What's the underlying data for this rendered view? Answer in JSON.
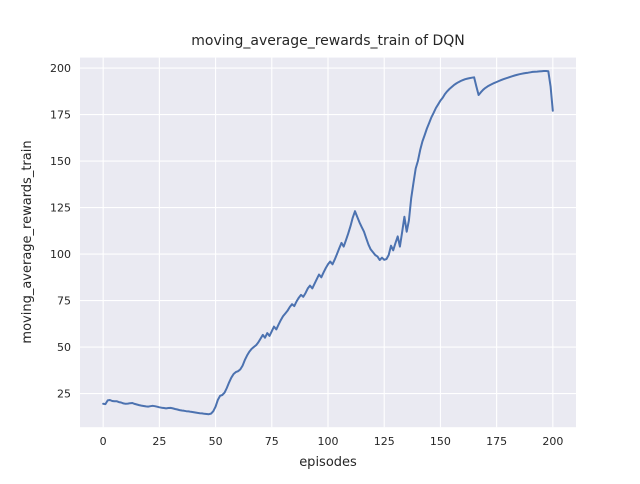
{
  "figure": {
    "background": "#ffffff"
  },
  "chart_data": {
    "type": "line",
    "title": "moving_average_rewards_train of DQN",
    "xlabel": "episodes",
    "ylabel": "moving_average_rewards_train",
    "x_ticks": [
      0,
      25,
      50,
      75,
      100,
      125,
      150,
      175,
      200
    ],
    "y_ticks": [
      25,
      50,
      75,
      100,
      125,
      150,
      175,
      200
    ],
    "xlim": [
      -10.3,
      210.3
    ],
    "ylim": [
      6.9,
      205.6
    ],
    "grid": true,
    "legend_position": "none",
    "styles": {
      "line_color": "#4c72b0",
      "plot_bg": "#eaeaf2",
      "grid_color": "#ffffff",
      "text_color": "#262626",
      "line_width": 2
    },
    "series": [
      {
        "name": "moving_average_rewards_train",
        "points": [
          [
            0,
            19.5
          ],
          [
            1,
            19.3
          ],
          [
            2,
            21.3
          ],
          [
            3,
            21.5
          ],
          [
            4,
            21.0
          ],
          [
            5,
            20.8
          ],
          [
            6,
            20.9
          ],
          [
            7,
            20.4
          ],
          [
            8,
            20.2
          ],
          [
            9,
            19.7
          ],
          [
            10,
            19.5
          ],
          [
            11,
            19.6
          ],
          [
            12,
            19.8
          ],
          [
            13,
            19.9
          ],
          [
            14,
            19.4
          ],
          [
            15,
            19.1
          ],
          [
            16,
            18.8
          ],
          [
            17,
            18.5
          ],
          [
            18,
            18.3
          ],
          [
            19,
            18.1
          ],
          [
            20,
            18.0
          ],
          [
            21,
            18.2
          ],
          [
            22,
            18.4
          ],
          [
            23,
            18.2
          ],
          [
            24,
            17.9
          ],
          [
            25,
            17.6
          ],
          [
            26,
            17.4
          ],
          [
            27,
            17.2
          ],
          [
            28,
            17.0
          ],
          [
            29,
            17.2
          ],
          [
            30,
            17.3
          ],
          [
            31,
            17.0
          ],
          [
            32,
            16.7
          ],
          [
            33,
            16.4
          ],
          [
            34,
            16.1
          ],
          [
            35,
            15.9
          ],
          [
            36,
            15.7
          ],
          [
            37,
            15.5
          ],
          [
            38,
            15.4
          ],
          [
            39,
            15.2
          ],
          [
            40,
            15.0
          ],
          [
            41,
            14.8
          ],
          [
            42,
            14.6
          ],
          [
            43,
            14.4
          ],
          [
            44,
            14.3
          ],
          [
            45,
            14.1
          ],
          [
            46,
            14.0
          ],
          [
            47,
            13.9
          ],
          [
            48,
            14.2
          ],
          [
            49,
            15.5
          ],
          [
            50,
            18.0
          ],
          [
            51,
            21.5
          ],
          [
            52,
            23.8
          ],
          [
            53,
            24.2
          ],
          [
            54,
            25.5
          ],
          [
            55,
            28.0
          ],
          [
            56,
            31.0
          ],
          [
            57,
            33.5
          ],
          [
            58,
            35.5
          ],
          [
            59,
            36.5
          ],
          [
            60,
            37.0
          ],
          [
            61,
            38.0
          ],
          [
            62,
            40.0
          ],
          [
            63,
            43.0
          ],
          [
            64,
            45.5
          ],
          [
            65,
            47.5
          ],
          [
            66,
            49.0
          ],
          [
            67,
            50.0
          ],
          [
            68,
            51.0
          ],
          [
            69,
            52.5
          ],
          [
            70,
            54.5
          ],
          [
            71,
            56.5
          ],
          [
            72,
            55.0
          ],
          [
            73,
            57.5
          ],
          [
            74,
            56.0
          ],
          [
            75,
            58.5
          ],
          [
            76,
            61.0
          ],
          [
            77,
            59.5
          ],
          [
            78,
            62.0
          ],
          [
            79,
            64.5
          ],
          [
            80,
            66.5
          ],
          [
            81,
            68.0
          ],
          [
            82,
            69.5
          ],
          [
            83,
            71.5
          ],
          [
            84,
            73.0
          ],
          [
            85,
            72.0
          ],
          [
            86,
            74.5
          ],
          [
            87,
            76.5
          ],
          [
            88,
            78.0
          ],
          [
            89,
            77.0
          ],
          [
            90,
            79.0
          ],
          [
            91,
            81.5
          ],
          [
            92,
            83.0
          ],
          [
            93,
            81.5
          ],
          [
            94,
            84.0
          ],
          [
            95,
            86.5
          ],
          [
            96,
            89.0
          ],
          [
            97,
            87.5
          ],
          [
            98,
            90.0
          ],
          [
            99,
            92.5
          ],
          [
            100,
            94.5
          ],
          [
            101,
            96.0
          ],
          [
            102,
            94.5
          ],
          [
            103,
            97.0
          ],
          [
            104,
            100.0
          ],
          [
            105,
            103.0
          ],
          [
            106,
            106.0
          ],
          [
            107,
            104.0
          ],
          [
            108,
            107.5
          ],
          [
            109,
            111.0
          ],
          [
            110,
            115.0
          ],
          [
            111,
            119.5
          ],
          [
            112,
            123.0
          ],
          [
            113,
            120.0
          ],
          [
            114,
            117.0
          ],
          [
            115,
            114.5
          ],
          [
            116,
            112.0
          ],
          [
            117,
            108.5
          ],
          [
            118,
            105.0
          ],
          [
            119,
            102.5
          ],
          [
            120,
            101.0
          ],
          [
            121,
            99.5
          ],
          [
            122,
            98.6
          ],
          [
            123,
            96.8
          ],
          [
            124,
            98.0
          ],
          [
            125,
            96.9
          ],
          [
            126,
            97.3
          ],
          [
            127,
            99.5
          ],
          [
            128,
            104.5
          ],
          [
            129,
            102.0
          ],
          [
            130,
            106.0
          ],
          [
            131,
            109.5
          ],
          [
            132,
            104.0
          ],
          [
            133,
            112.0
          ],
          [
            134,
            120.0
          ],
          [
            135,
            112.0
          ],
          [
            136,
            118.0
          ],
          [
            137,
            130.0
          ],
          [
            138,
            138.0
          ],
          [
            139,
            146.0
          ],
          [
            140,
            150.0
          ],
          [
            141,
            156.0
          ],
          [
            142,
            160.5
          ],
          [
            143,
            164.0
          ],
          [
            144,
            167.5
          ],
          [
            145,
            170.5
          ],
          [
            146,
            173.5
          ],
          [
            147,
            176.0
          ],
          [
            148,
            178.5
          ],
          [
            149,
            180.5
          ],
          [
            150,
            182.5
          ],
          [
            151,
            184.0
          ],
          [
            152,
            186.0
          ],
          [
            153,
            187.5
          ],
          [
            154,
            188.7
          ],
          [
            155,
            189.8
          ],
          [
            156,
            190.8
          ],
          [
            157,
            191.7
          ],
          [
            158,
            192.4
          ],
          [
            159,
            193.0
          ],
          [
            160,
            193.5
          ],
          [
            161,
            194.0
          ],
          [
            162,
            194.3
          ],
          [
            163,
            194.6
          ],
          [
            164,
            194.8
          ],
          [
            165,
            195.0
          ],
          [
            166,
            190.0
          ],
          [
            167,
            185.5
          ],
          [
            168,
            187.0
          ],
          [
            169,
            188.3
          ],
          [
            170,
            189.3
          ],
          [
            171,
            190.1
          ],
          [
            172,
            190.8
          ],
          [
            173,
            191.4
          ],
          [
            174,
            192.0
          ],
          [
            175,
            192.5
          ],
          [
            176,
            193.0
          ],
          [
            177,
            193.5
          ],
          [
            178,
            194.0
          ],
          [
            179,
            194.4
          ],
          [
            180,
            194.8
          ],
          [
            181,
            195.2
          ],
          [
            182,
            195.6
          ],
          [
            183,
            196.0
          ],
          [
            184,
            196.3
          ],
          [
            185,
            196.6
          ],
          [
            186,
            196.9
          ],
          [
            187,
            197.1
          ],
          [
            188,
            197.3
          ],
          [
            189,
            197.5
          ],
          [
            190,
            197.7
          ],
          [
            191,
            197.9
          ],
          [
            192,
            198.0
          ],
          [
            193,
            198.1
          ],
          [
            194,
            198.2
          ],
          [
            195,
            198.3
          ],
          [
            196,
            198.4
          ],
          [
            197,
            198.4
          ],
          [
            198,
            198.3
          ],
          [
            199,
            190.0
          ],
          [
            200,
            177.0
          ]
        ]
      }
    ]
  }
}
